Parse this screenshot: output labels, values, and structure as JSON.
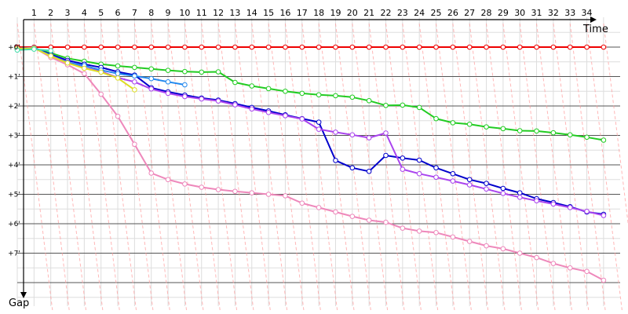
{
  "chart_data": {
    "type": "line",
    "xlabel": "Time",
    "ylabel": "Gap",
    "x_ticks": [
      1,
      2,
      3,
      4,
      5,
      6,
      7,
      8,
      9,
      10,
      11,
      12,
      13,
      14,
      15,
      16,
      17,
      18,
      19,
      20,
      21,
      22,
      23,
      24,
      25,
      26,
      27,
      28,
      29,
      30,
      31,
      32,
      33,
      34
    ],
    "y_ticks": [
      "+0'",
      "+1'",
      "+2'",
      "+3'",
      "+4'",
      "+5'",
      "+6'",
      "+7'"
    ],
    "x_range": [
      0,
      36
    ],
    "y_range_minutes": [
      -0.5,
      8.5
    ],
    "grid": true,
    "series": [
      {
        "color": "#ee0000",
        "x": [
          0,
          1,
          2,
          3,
          4,
          5,
          6,
          7,
          8,
          9,
          10,
          11,
          12,
          13,
          14,
          15,
          16,
          17,
          18,
          19,
          20,
          21,
          22,
          23,
          24,
          25,
          26,
          27,
          28,
          29,
          30,
          31,
          32,
          33,
          34,
          35
        ],
        "values": [
          0,
          0,
          0,
          0,
          0,
          0,
          0,
          0,
          0,
          0,
          0,
          0,
          0,
          0,
          0,
          0,
          0,
          0,
          0,
          0,
          0,
          0,
          0,
          0,
          0,
          0,
          0,
          0,
          0,
          0,
          0,
          0,
          0,
          0,
          0,
          0
        ]
      },
      {
        "color": "#22cc22",
        "x": [
          0,
          1,
          2,
          3,
          4,
          5,
          6,
          7,
          8,
          9,
          10,
          11,
          12,
          13,
          14,
          15,
          16,
          17,
          18,
          19,
          20,
          21,
          22,
          23,
          24,
          25,
          26,
          27,
          28,
          29,
          30,
          31,
          32,
          33,
          34,
          35
        ],
        "values": [
          0.08,
          0.05,
          0.2,
          0.38,
          0.48,
          0.58,
          0.64,
          0.69,
          0.74,
          0.79,
          0.83,
          0.85,
          0.84,
          1.2,
          1.32,
          1.41,
          1.5,
          1.57,
          1.62,
          1.65,
          1.7,
          1.82,
          1.98,
          1.97,
          2.05,
          2.43,
          2.57,
          2.62,
          2.71,
          2.77,
          2.84,
          2.85,
          2.91,
          2.98,
          3.06,
          3.16
        ]
      },
      {
        "color": "#0000cc",
        "x": [
          0,
          1,
          2,
          3,
          4,
          5,
          6,
          7,
          8,
          9,
          10,
          11,
          12,
          13,
          14,
          15,
          16,
          17,
          18,
          19,
          20,
          21,
          22,
          23,
          24,
          25,
          26,
          27,
          28,
          29,
          30,
          31,
          32,
          33,
          34,
          35
        ],
        "values": [
          0.04,
          0.02,
          0.25,
          0.45,
          0.58,
          0.69,
          0.84,
          0.95,
          1.38,
          1.52,
          1.63,
          1.73,
          1.8,
          1.92,
          2.05,
          2.17,
          2.3,
          2.43,
          2.55,
          3.85,
          4.1,
          4.22,
          3.68,
          3.77,
          3.84,
          4.1,
          4.3,
          4.5,
          4.63,
          4.8,
          4.95,
          5.15,
          5.28,
          5.42,
          5.6,
          5.68
        ]
      },
      {
        "color": "#aa44ee",
        "x": [
          0,
          1,
          2,
          3,
          4,
          5,
          6,
          7,
          8,
          9,
          10,
          11,
          12,
          13,
          14,
          15,
          16,
          17,
          18,
          19,
          20,
          21,
          22,
          23,
          24,
          25,
          26,
          27,
          28,
          29,
          30,
          31,
          32,
          33,
          34,
          35
        ],
        "values": [
          0.05,
          0.03,
          0.3,
          0.5,
          0.7,
          0.82,
          1.04,
          1.18,
          1.42,
          1.57,
          1.68,
          1.76,
          1.83,
          1.96,
          2.1,
          2.22,
          2.33,
          2.44,
          2.79,
          2.89,
          2.98,
          3.08,
          2.92,
          4.15,
          4.3,
          4.42,
          4.55,
          4.68,
          4.82,
          4.97,
          5.1,
          5.22,
          5.33,
          5.45,
          5.58,
          5.72
        ]
      },
      {
        "color": "#ee88bb",
        "x": [
          0,
          1,
          2,
          3,
          4,
          5,
          6,
          7,
          8,
          9,
          10,
          11,
          12,
          13,
          14,
          15,
          16,
          17,
          18,
          19,
          20,
          21,
          22,
          23,
          24,
          25,
          26,
          27,
          28,
          29,
          30,
          31,
          32,
          33,
          34,
          35
        ],
        "values": [
          0.05,
          0.02,
          0.35,
          0.6,
          0.9,
          1.6,
          2.35,
          3.3,
          4.28,
          4.5,
          4.65,
          4.76,
          4.84,
          4.9,
          4.95,
          5.0,
          5.05,
          5.3,
          5.45,
          5.6,
          5.75,
          5.88,
          5.95,
          6.15,
          6.25,
          6.3,
          6.45,
          6.6,
          6.75,
          6.85,
          7.0,
          7.15,
          7.35,
          7.5,
          7.62,
          7.92
        ]
      },
      {
        "color": "#2288ee",
        "x": [
          0,
          1,
          2,
          3,
          4,
          5,
          6,
          7,
          8,
          9,
          10
        ],
        "values": [
          0.06,
          0.03,
          0.28,
          0.52,
          0.63,
          0.78,
          0.9,
          0.98,
          1.07,
          1.18,
          1.28
        ]
      },
      {
        "color": "#dddd22",
        "x": [
          0,
          1,
          2,
          3,
          4,
          5,
          6,
          7
        ],
        "values": [
          0.05,
          0.04,
          0.3,
          0.54,
          0.72,
          0.85,
          1.05,
          1.45
        ]
      },
      {
        "color": "#44ddaa",
        "x": [
          0,
          1,
          2
        ],
        "values": [
          0.1,
          0.07,
          0.12
        ]
      }
    ]
  }
}
